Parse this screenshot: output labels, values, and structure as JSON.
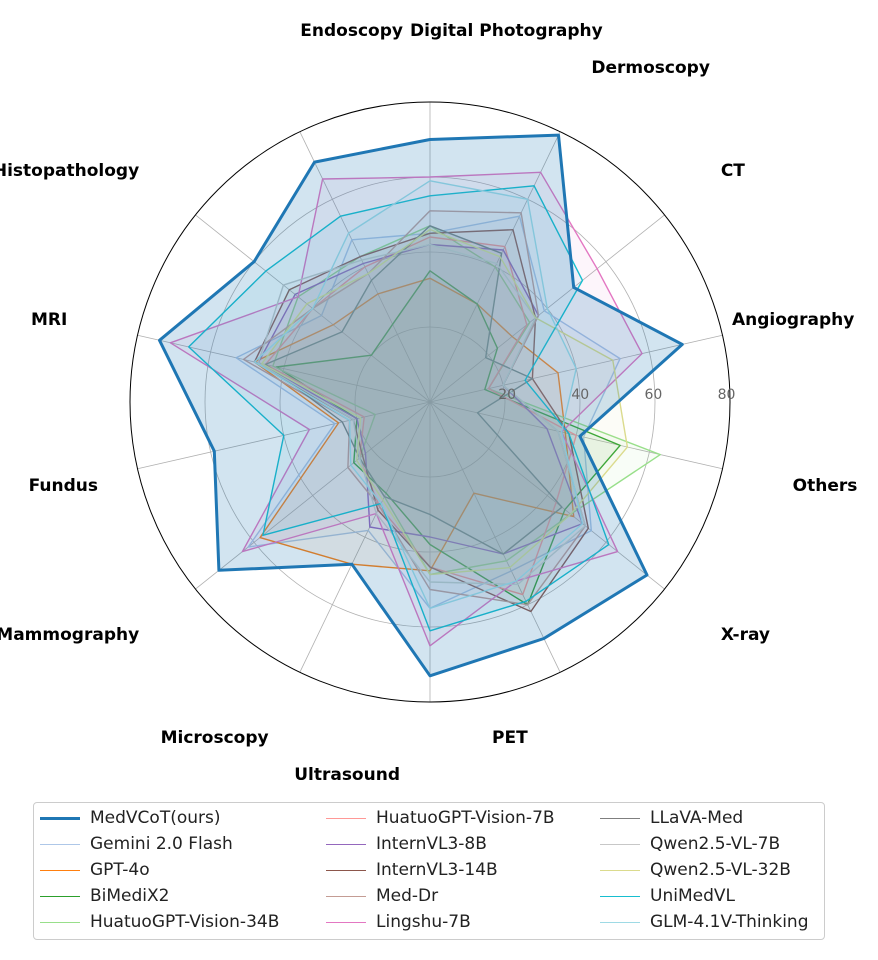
{
  "chart_data": {
    "type": "radar",
    "categories": [
      "Digital Photography",
      "Dermoscopy",
      "CT",
      "Angiography",
      "Others",
      "X-ray",
      "PET",
      "Ultrasound",
      "Microscopy",
      "Mammography",
      "Fundus",
      "MRI",
      "Histopathology",
      "Endoscopy"
    ],
    "radial_ticks": [
      "20",
      "40",
      "60",
      "80"
    ],
    "rmax": 80,
    "grid": true,
    "legend_position": "bottom",
    "series": [
      {
        "name": "MedVCoT(ours)",
        "color": "#1f77b4",
        "fill": true,
        "values": [
          70,
          79,
          49,
          69,
          41,
          74,
          70,
          73,
          48,
          72,
          59,
          74,
          60,
          71
        ]
      },
      {
        "name": "Gemini 2.0 Flash",
        "color": "#aec7e8",
        "values": [
          45,
          55,
          39,
          52,
          42,
          55,
          50,
          55,
          38,
          62,
          26,
          53,
          37,
          48
        ]
      },
      {
        "name": "GPT-4o",
        "color": "#ff7f0e",
        "values": [
          33,
          29,
          28,
          35,
          37,
          49,
          27,
          45,
          48,
          58,
          25,
          48,
          33,
          32
        ]
      },
      {
        "name": "BiMediX2",
        "color": "#2ca02c",
        "values": [
          35,
          29,
          23,
          15,
          52,
          46,
          60,
          38,
          27,
          26,
          20,
          42,
          20,
          23
        ]
      },
      {
        "name": "HuatuoGPT-Vision-34B",
        "color": "#98df8a",
        "values": [
          47,
          40,
          34,
          16,
          63,
          48,
          47,
          46,
          28,
          24,
          15,
          43,
          45,
          43
        ]
      },
      {
        "name": "HuatuoGPT-Vision-7B",
        "color": "#ff9896",
        "values": [
          44,
          46,
          33,
          16,
          40,
          43,
          57,
          44,
          31,
          24,
          18,
          45,
          40,
          40
        ]
      },
      {
        "name": "InternVL3-8B",
        "color": "#9467bd",
        "values": [
          42,
          45,
          37,
          20,
          32,
          52,
          45,
          36,
          37,
          22,
          20,
          47,
          46,
          41
        ]
      },
      {
        "name": "InternVL3-14B",
        "color": "#8c564b",
        "values": [
          45,
          51,
          36,
          28,
          38,
          54,
          62,
          44,
          32,
          23,
          21,
          48,
          48,
          43
        ]
      },
      {
        "name": "Med-Dr",
        "color": "#c49c94",
        "values": [
          51,
          56,
          37,
          20,
          35,
          53,
          60,
          50,
          31,
          28,
          22,
          51,
          40,
          38
        ]
      },
      {
        "name": "Lingshu-7B",
        "color": "#e377c2",
        "values": [
          60,
          68,
          57,
          58,
          36,
          64,
          53,
          65,
          33,
          64,
          33,
          71,
          45,
          66
        ]
      },
      {
        "name": "LLaVA-Med",
        "color": "#7f7f7f",
        "values": [
          47,
          44,
          19,
          28,
          13,
          45,
          45,
          30,
          28,
          24,
          24,
          45,
          30,
          36
        ]
      },
      {
        "name": "Qwen2.5-VL-7B",
        "color": "#c7c7c7",
        "values": [
          42,
          41,
          36,
          20,
          35,
          53,
          54,
          48,
          33,
          24,
          21,
          47,
          50,
          42
        ]
      },
      {
        "name": "Qwen2.5-VL-32B",
        "color": "#dbdb8d",
        "values": [
          46,
          43,
          36,
          50,
          54,
          48,
          49,
          46,
          29,
          25,
          19,
          46,
          42,
          38
        ]
      },
      {
        "name": "UniMedVL",
        "color": "#17becf",
        "values": [
          55,
          64,
          52,
          26,
          38,
          61,
          59,
          61,
          30,
          57,
          40,
          66,
          56,
          55
        ]
      },
      {
        "name": "GLM-4.1V-Thinking",
        "color": "#9edae5",
        "values": [
          59,
          60,
          40,
          40,
          36,
          52,
          53,
          55,
          30,
          27,
          22,
          48,
          40,
          50
        ]
      }
    ]
  }
}
